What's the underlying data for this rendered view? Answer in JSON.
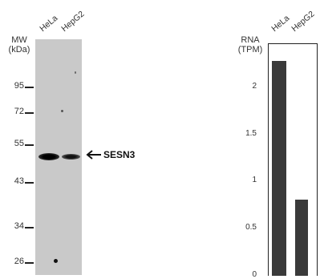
{
  "western_blot": {
    "mw_label": "MW\n(kDa)",
    "lanes": [
      "HeLa",
      "HepG2"
    ],
    "markers": [
      "95",
      "72",
      "55",
      "43",
      "34",
      "26"
    ],
    "target_label": "SESN3",
    "arrow_glyph": "arrow-left-icon"
  },
  "chart_data": {
    "type": "bar",
    "categories": [
      "HeLa",
      "HepG2"
    ],
    "values": [
      2.28,
      0.81
    ],
    "ylabel": "RNA\n(TPM)",
    "yticks": [
      "2",
      "1.5",
      "1",
      "0.5",
      "0"
    ],
    "ylim": [
      0,
      2.45
    ],
    "bar_color": "#3a3a3a",
    "grid": false
  }
}
